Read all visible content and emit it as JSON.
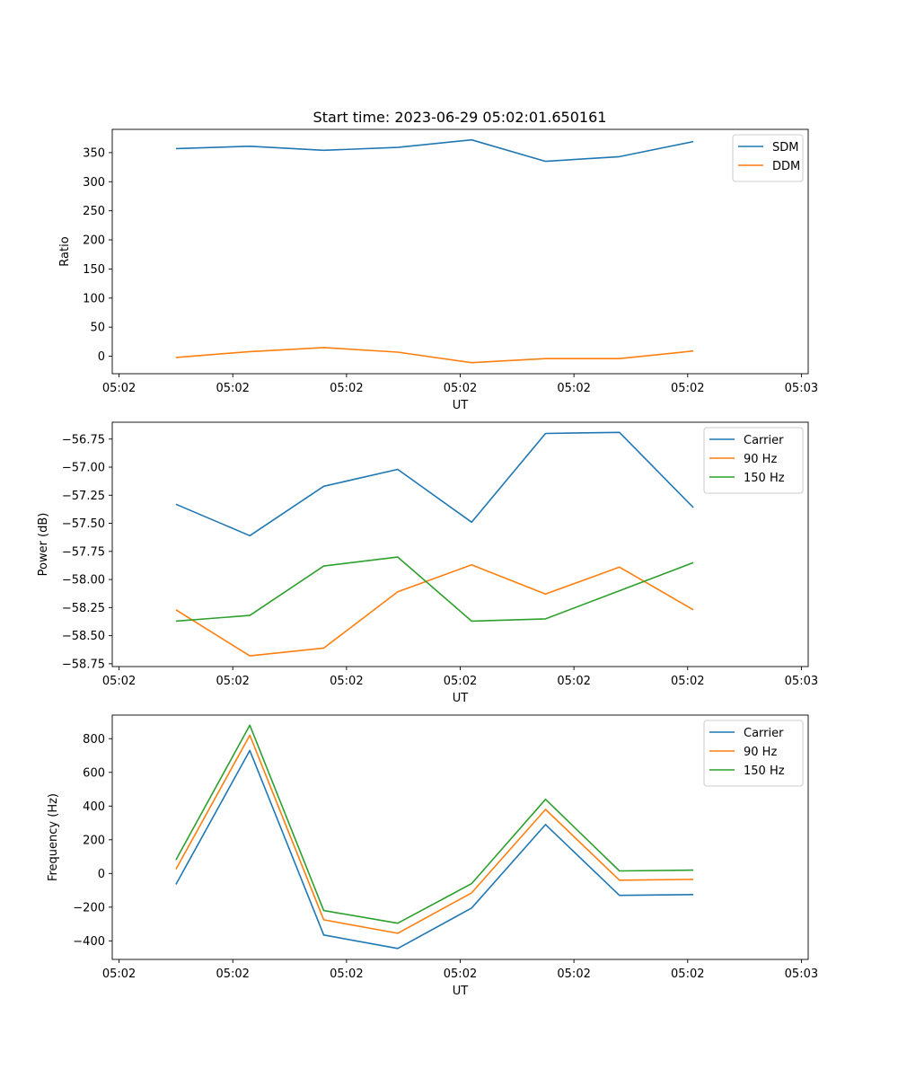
{
  "title": "Start time: 2023-06-29 05:02:01.650161",
  "colors": {
    "blue": "#1f77b4",
    "orange": "#ff7f0e",
    "green": "#2ca02c"
  },
  "chart_data": [
    {
      "type": "line",
      "xlabel": "UT",
      "ylabel": "Ratio",
      "x_tick_labels": [
        "05:02",
        "05:02",
        "05:02",
        "05:02",
        "05:02",
        "05:02",
        "05:03"
      ],
      "x_tick_values": [
        0,
        1,
        2,
        3,
        4,
        5,
        6
      ],
      "xlim": [
        -0.06,
        6.06
      ],
      "y_ticks": [
        0,
        50,
        100,
        150,
        200,
        250,
        300,
        350
      ],
      "y_tick_labels": [
        "0",
        "50",
        "100",
        "150",
        "200",
        "250",
        "300",
        "350"
      ],
      "ylim": [
        -30,
        390
      ],
      "x": [
        0.5,
        1.15,
        1.8,
        2.45,
        3.1,
        3.75,
        4.4,
        5.05
      ],
      "legend_position": "upper-right",
      "series": [
        {
          "name": "SDM",
          "color": "#1f77b4",
          "values": [
            357,
            361,
            354,
            359,
            372,
            335,
            343,
            369
          ]
        },
        {
          "name": "DDM",
          "color": "#ff7f0e",
          "values": [
            -2,
            8,
            15,
            7,
            -11,
            -4,
            -4,
            9
          ]
        }
      ]
    },
    {
      "type": "line",
      "xlabel": "UT",
      "ylabel": "Power (dB)",
      "x_tick_labels": [
        "05:02",
        "05:02",
        "05:02",
        "05:02",
        "05:02",
        "05:02",
        "05:03"
      ],
      "x_tick_values": [
        0,
        1,
        2,
        3,
        4,
        5,
        6
      ],
      "xlim": [
        -0.06,
        6.06
      ],
      "y_ticks": [
        -58.75,
        -58.5,
        -58.25,
        -58.0,
        -57.75,
        -57.5,
        -57.25,
        -57.0,
        -56.75
      ],
      "y_tick_labels": [
        "−58.75",
        "−58.50",
        "−58.25",
        "−58.00",
        "−57.75",
        "−57.50",
        "−57.25",
        "−57.00",
        "−56.75"
      ],
      "ylim": [
        -58.775,
        -56.6
      ],
      "x": [
        0.5,
        1.15,
        1.8,
        2.45,
        3.1,
        3.75,
        4.4,
        5.05
      ],
      "legend_position": "upper-right",
      "series": [
        {
          "name": "Carrier",
          "color": "#1f77b4",
          "values": [
            -57.33,
            -57.61,
            -57.17,
            -57.02,
            -57.49,
            -56.7,
            -56.69,
            -57.36
          ]
        },
        {
          "name": "90 Hz",
          "color": "#ff7f0e",
          "values": [
            -58.27,
            -58.68,
            -58.61,
            -58.11,
            -57.87,
            -58.13,
            -57.89,
            -58.27
          ]
        },
        {
          "name": "150 Hz",
          "color": "#2ca02c",
          "values": [
            -58.37,
            -58.32,
            -57.88,
            -57.8,
            -58.37,
            -58.35,
            -58.1,
            -57.85
          ]
        }
      ]
    },
    {
      "type": "line",
      "xlabel": "UT",
      "ylabel": "Frequency (Hz)",
      "x_tick_labels": [
        "05:02",
        "05:02",
        "05:02",
        "05:02",
        "05:02",
        "05:02",
        "05:03"
      ],
      "x_tick_values": [
        0,
        1,
        2,
        3,
        4,
        5,
        6
      ],
      "xlim": [
        -0.06,
        6.06
      ],
      "y_ticks": [
        -400,
        -200,
        0,
        200,
        400,
        600,
        800
      ],
      "y_tick_labels": [
        "−400",
        "−200",
        "0",
        "200",
        "400",
        "600",
        "800"
      ],
      "ylim": [
        -510,
        940
      ],
      "x": [
        0.5,
        1.15,
        1.8,
        2.45,
        3.1,
        3.75,
        4.4,
        5.05
      ],
      "legend_position": "upper-right",
      "series": [
        {
          "name": "Carrier",
          "color": "#1f77b4",
          "values": [
            -65,
            730,
            -365,
            -445,
            -205,
            290,
            -130,
            -125
          ]
        },
        {
          "name": "90 Hz",
          "color": "#ff7f0e",
          "values": [
            25,
            820,
            -275,
            -355,
            -115,
            380,
            -40,
            -35
          ]
        },
        {
          "name": "150 Hz",
          "color": "#2ca02c",
          "values": [
            80,
            880,
            -220,
            -295,
            -60,
            440,
            15,
            20
          ]
        }
      ]
    }
  ]
}
